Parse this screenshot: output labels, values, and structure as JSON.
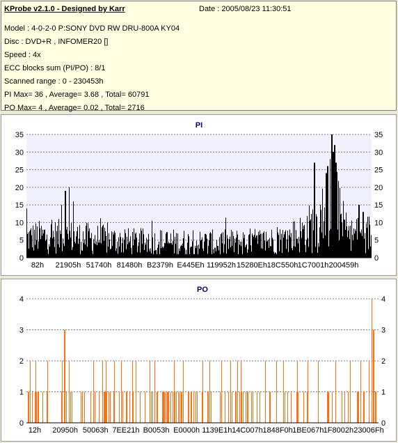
{
  "info": {
    "title": "KProbe v2.1.0 - Designed by Karr",
    "date": "Date : 2005/08/23 11:30:51",
    "lines": [
      "Model : 4-0-2-0 P:SONY    DVD RW DRU-800A  KY04",
      "Disc : DVD+R , INFOMER20 []",
      "Speed : 4x",
      "ECC blocks sum (PI/PO) : 8/1",
      "Scanned range : 0 - 230453h",
      "PI Max= 36 , Average= 3.68 , Total= 60791",
      "PO Max= 4 , Average= 0.02 , Total= 2716"
    ]
  },
  "chart_data": [
    {
      "type": "bar",
      "title": "PI",
      "ylim": [
        0,
        35
      ],
      "y_ticks": [
        0,
        5,
        10,
        15,
        20,
        25,
        30,
        35
      ],
      "x_tick_labels": [
        "82h",
        "21905h",
        "51740h",
        "81480h",
        "B2379h",
        "E445Eh",
        "119952h",
        "15280Eh",
        "18C550h",
        "1C7001h",
        "200459h"
      ],
      "grid": true,
      "color": "#000000",
      "background": "#F0F0FF",
      "profile": [
        {
          "x": 0.0,
          "base": 5.5,
          "amp": 4.5
        },
        {
          "x": 0.05,
          "base": 6.0,
          "amp": 5.0
        },
        {
          "x": 0.1,
          "base": 6.0,
          "amp": 5.0
        },
        {
          "x": 0.3,
          "base": 4.5,
          "amp": 4.0
        },
        {
          "x": 0.55,
          "base": 4.0,
          "amp": 4.0
        },
        {
          "x": 0.74,
          "base": 5.0,
          "amp": 4.0
        },
        {
          "x": 0.8,
          "base": 7.0,
          "amp": 6.0
        },
        {
          "x": 0.86,
          "base": 11.0,
          "amp": 10.0
        },
        {
          "x": 0.9,
          "base": 14.0,
          "amp": 10.0
        },
        {
          "x": 0.93,
          "base": 6.5,
          "amp": 4.5
        },
        {
          "x": 1.0,
          "base": 7.0,
          "amp": 6.0
        }
      ],
      "peaks": [
        {
          "x": 0.123,
          "y": 20
        },
        {
          "x": 0.112,
          "y": 19
        },
        {
          "x": 0.135,
          "y": 16
        },
        {
          "x": 0.1,
          "y": 15
        },
        {
          "x": 0.885,
          "y": 36
        },
        {
          "x": 0.893,
          "y": 32
        },
        {
          "x": 0.897,
          "y": 27
        },
        {
          "x": 0.88,
          "y": 28
        },
        {
          "x": 0.872,
          "y": 26
        },
        {
          "x": 0.889,
          "y": 30
        },
        {
          "x": 0.868,
          "y": 24
        },
        {
          "x": 0.835,
          "y": 27
        },
        {
          "x": 0.964,
          "y": 15
        },
        {
          "x": 0.975,
          "y": 13
        },
        {
          "x": 0.0,
          "y": 14
        }
      ]
    },
    {
      "type": "bar",
      "title": "PO",
      "ylim": [
        0,
        4
      ],
      "y_ticks": [
        0,
        1,
        2,
        3,
        4
      ],
      "x_tick_labels": [
        "12h",
        "20950h",
        "50063h",
        "7EE21h",
        "B0053h",
        "E0000h",
        "1139E1h",
        "14C007h",
        "1848F0h",
        "1BE067h",
        "1F8002h",
        "23006Fh"
      ],
      "grid": true,
      "color": "#FF7010",
      "background": "#FFFFFF",
      "value2_positions": [
        0.01,
        0.025,
        0.06,
        0.1,
        0.12,
        0.19,
        0.215,
        0.225,
        0.25,
        0.27,
        0.3,
        0.31,
        0.35,
        0.365,
        0.42,
        0.445,
        0.5,
        0.52,
        0.555,
        0.58,
        0.6,
        0.61,
        0.68,
        0.71,
        0.73,
        0.77,
        0.8,
        0.83,
        0.88,
        0.92,
        0.95,
        0.975
      ],
      "value3_positions": [
        0.107,
        0.109,
        0.986,
        0.989
      ],
      "value4_positions": [
        0.983
      ],
      "value1_density": 0.22
    }
  ]
}
